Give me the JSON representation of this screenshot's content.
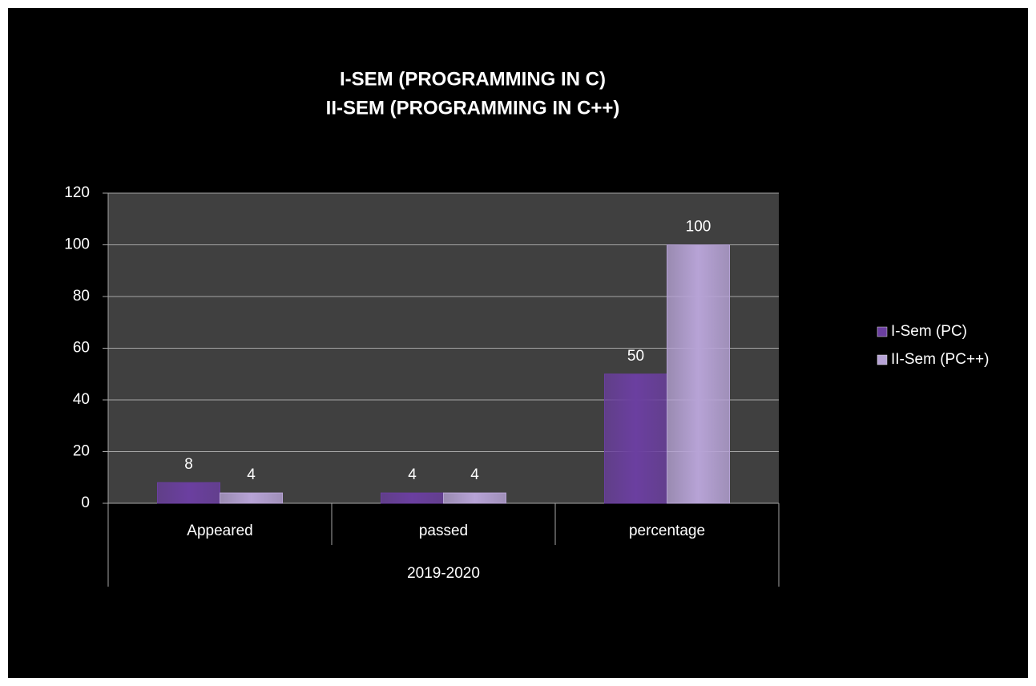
{
  "chart_data": {
    "type": "bar",
    "title": [
      "I-SEM (PROGRAMMING IN C)",
      "II-SEM (PROGRAMMING IN C++)"
    ],
    "categories": [
      "Appeared",
      "passed",
      "percentage"
    ],
    "category_group": "2019-2020",
    "series": [
      {
        "name": "I-Sem (PC)",
        "color": "#6b3fa0",
        "values": [
          8,
          4,
          50
        ]
      },
      {
        "name": "II-Sem (PC++)",
        "color": "#b7a3d6",
        "values": [
          4,
          4,
          100
        ]
      }
    ],
    "ylim": [
      0,
      120
    ],
    "yticks": [
      0,
      20,
      40,
      60,
      80,
      100,
      120
    ],
    "grid": true,
    "legend": "right"
  }
}
